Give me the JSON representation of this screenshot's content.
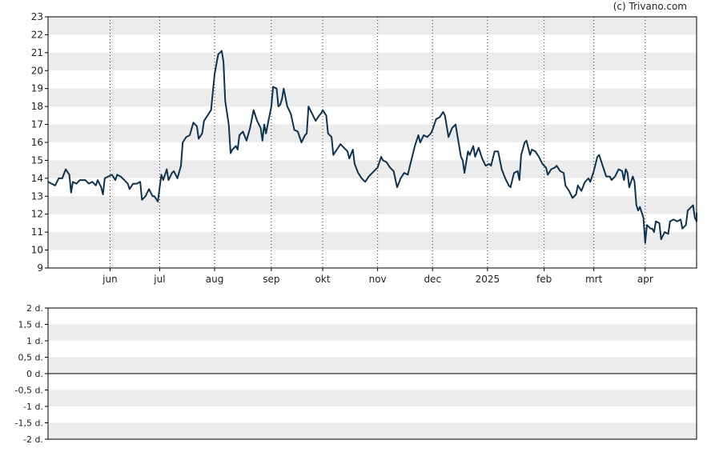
{
  "watermark": "(c) Trivano.com",
  "colors": {
    "line": "#0d3350",
    "band": "#ececec",
    "axis": "#000000",
    "text": "#222222"
  },
  "chart_data": [
    {
      "type": "line",
      "x_type": "date",
      "ylim": [
        9,
        23
      ],
      "yticks": [
        9,
        10,
        11,
        12,
        13,
        14,
        15,
        16,
        17,
        18,
        19,
        20,
        21,
        22,
        23
      ],
      "xlim": [
        "2024-04-29",
        "2025-04-30"
      ],
      "xticks": [
        {
          "date": "2024-06-03",
          "label": "jun"
        },
        {
          "date": "2024-07-01",
          "label": "jul"
        },
        {
          "date": "2024-08-01",
          "label": "aug"
        },
        {
          "date": "2024-09-02",
          "label": "sep"
        },
        {
          "date": "2024-10-01",
          "label": "okt"
        },
        {
          "date": "2024-11-01",
          "label": "nov"
        },
        {
          "date": "2024-12-02",
          "label": "dec"
        },
        {
          "date": "2025-01-02",
          "label": "2025"
        },
        {
          "date": "2025-02-03",
          "label": "feb"
        },
        {
          "date": "2025-03-03",
          "label": "mrt"
        },
        {
          "date": "2025-04-01",
          "label": "apr"
        }
      ],
      "grid": "vertical dotted at month ticks, alternating horizontal bands",
      "series": [
        {
          "points": [
            [
              "2024-04-29",
              13.8
            ],
            [
              "2024-05-01",
              13.7
            ],
            [
              "2024-05-03",
              13.6
            ],
            [
              "2024-05-05",
              14.0
            ],
            [
              "2024-05-07",
              14.0
            ],
            [
              "2024-05-09",
              14.5
            ],
            [
              "2024-05-11",
              14.2
            ],
            [
              "2024-05-12",
              13.2
            ],
            [
              "2024-05-13",
              13.8
            ],
            [
              "2024-05-15",
              13.7
            ],
            [
              "2024-05-17",
              13.9
            ],
            [
              "2024-05-20",
              13.9
            ],
            [
              "2024-05-22",
              13.7
            ],
            [
              "2024-05-24",
              13.8
            ],
            [
              "2024-05-26",
              13.6
            ],
            [
              "2024-05-27",
              13.9
            ],
            [
              "2024-05-29",
              13.5
            ],
            [
              "2024-05-30",
              13.1
            ],
            [
              "2024-05-31",
              14.0
            ],
            [
              "2024-06-02",
              14.1
            ],
            [
              "2024-06-04",
              14.2
            ],
            [
              "2024-06-06",
              13.9
            ],
            [
              "2024-06-07",
              14.2
            ],
            [
              "2024-06-09",
              14.1
            ],
            [
              "2024-06-11",
              13.9
            ],
            [
              "2024-06-13",
              13.7
            ],
            [
              "2024-06-14",
              13.4
            ],
            [
              "2024-06-16",
              13.7
            ],
            [
              "2024-06-18",
              13.7
            ],
            [
              "2024-06-20",
              13.8
            ],
            [
              "2024-06-21",
              12.8
            ],
            [
              "2024-06-23",
              13.0
            ],
            [
              "2024-06-25",
              13.4
            ],
            [
              "2024-06-27",
              13.0
            ],
            [
              "2024-06-28",
              13.0
            ],
            [
              "2024-06-30",
              12.7
            ],
            [
              "2024-07-01",
              13.5
            ],
            [
              "2024-07-02",
              14.2
            ],
            [
              "2024-07-03",
              13.9
            ],
            [
              "2024-07-05",
              14.5
            ],
            [
              "2024-07-06",
              13.9
            ],
            [
              "2024-07-08",
              14.3
            ],
            [
              "2024-07-09",
              14.4
            ],
            [
              "2024-07-11",
              14.0
            ],
            [
              "2024-07-13",
              14.7
            ],
            [
              "2024-07-14",
              16.0
            ],
            [
              "2024-07-16",
              16.3
            ],
            [
              "2024-07-18",
              16.4
            ],
            [
              "2024-07-20",
              17.1
            ],
            [
              "2024-07-22",
              16.9
            ],
            [
              "2024-07-23",
              16.2
            ],
            [
              "2024-07-25",
              16.5
            ],
            [
              "2024-07-26",
              17.2
            ],
            [
              "2024-07-28",
              17.5
            ],
            [
              "2024-07-30",
              17.8
            ],
            [
              "2024-07-31",
              18.8
            ],
            [
              "2024-08-01",
              19.8
            ],
            [
              "2024-08-03",
              20.9
            ],
            [
              "2024-08-05",
              21.1
            ],
            [
              "2024-08-06",
              20.5
            ],
            [
              "2024-08-07",
              18.3
            ],
            [
              "2024-08-09",
              17.0
            ],
            [
              "2024-08-10",
              15.4
            ],
            [
              "2024-08-11",
              15.6
            ],
            [
              "2024-08-13",
              15.8
            ],
            [
              "2024-08-14",
              15.6
            ],
            [
              "2024-08-15",
              16.4
            ],
            [
              "2024-08-17",
              16.6
            ],
            [
              "2024-08-19",
              16.1
            ],
            [
              "2024-08-21",
              16.8
            ],
            [
              "2024-08-23",
              17.8
            ],
            [
              "2024-08-25",
              17.2
            ],
            [
              "2024-08-27",
              16.8
            ],
            [
              "2024-08-28",
              16.1
            ],
            [
              "2024-08-29",
              17.0
            ],
            [
              "2024-08-30",
              16.5
            ],
            [
              "2024-08-31",
              17.0
            ],
            [
              "2024-09-02",
              18.0
            ],
            [
              "2024-09-03",
              19.1
            ],
            [
              "2024-09-05",
              19.0
            ],
            [
              "2024-09-06",
              18.0
            ],
            [
              "2024-09-07",
              18.1
            ],
            [
              "2024-09-08",
              18.4
            ],
            [
              "2024-09-09",
              19.0
            ],
            [
              "2024-09-11",
              18.0
            ],
            [
              "2024-09-13",
              17.6
            ],
            [
              "2024-09-15",
              16.7
            ],
            [
              "2024-09-17",
              16.6
            ],
            [
              "2024-09-19",
              16.0
            ],
            [
              "2024-09-21",
              16.4
            ],
            [
              "2024-09-22",
              16.5
            ],
            [
              "2024-09-23",
              18.0
            ],
            [
              "2024-09-25",
              17.6
            ],
            [
              "2024-09-27",
              17.2
            ],
            [
              "2024-09-29",
              17.5
            ],
            [
              "2024-09-30",
              17.6
            ],
            [
              "2024-10-01",
              17.8
            ],
            [
              "2024-10-03",
              17.5
            ],
            [
              "2024-10-04",
              16.5
            ],
            [
              "2024-10-06",
              16.3
            ],
            [
              "2024-10-07",
              15.3
            ],
            [
              "2024-10-09",
              15.6
            ],
            [
              "2024-10-11",
              15.9
            ],
            [
              "2024-10-13",
              15.7
            ],
            [
              "2024-10-15",
              15.5
            ],
            [
              "2024-10-16",
              15.1
            ],
            [
              "2024-10-18",
              15.6
            ],
            [
              "2024-10-19",
              14.8
            ],
            [
              "2024-10-21",
              14.3
            ],
            [
              "2024-10-23",
              14.0
            ],
            [
              "2024-10-25",
              13.8
            ],
            [
              "2024-10-27",
              14.1
            ],
            [
              "2024-10-29",
              14.3
            ],
            [
              "2024-11-01",
              14.6
            ],
            [
              "2024-11-03",
              15.2
            ],
            [
              "2024-11-04",
              15.0
            ],
            [
              "2024-11-06",
              14.9
            ],
            [
              "2024-11-08",
              14.6
            ],
            [
              "2024-11-10",
              14.4
            ],
            [
              "2024-11-12",
              13.5
            ],
            [
              "2024-11-14",
              14.0
            ],
            [
              "2024-11-16",
              14.3
            ],
            [
              "2024-11-18",
              14.2
            ],
            [
              "2024-11-20",
              15.0
            ],
            [
              "2024-11-22",
              15.8
            ],
            [
              "2024-11-24",
              16.4
            ],
            [
              "2024-11-25",
              16.0
            ],
            [
              "2024-11-27",
              16.4
            ],
            [
              "2024-11-29",
              16.3
            ],
            [
              "2024-12-01",
              16.5
            ],
            [
              "2024-12-02",
              16.7
            ],
            [
              "2024-12-04",
              17.3
            ],
            [
              "2024-12-06",
              17.4
            ],
            [
              "2024-12-08",
              17.7
            ],
            [
              "2024-12-09",
              17.5
            ],
            [
              "2024-12-11",
              16.3
            ],
            [
              "2024-12-13",
              16.8
            ],
            [
              "2024-12-15",
              17.0
            ],
            [
              "2024-12-16",
              16.4
            ],
            [
              "2024-12-18",
              15.2
            ],
            [
              "2024-12-19",
              15.0
            ],
            [
              "2024-12-20",
              14.3
            ],
            [
              "2024-12-22",
              15.5
            ],
            [
              "2024-12-23",
              15.3
            ],
            [
              "2024-12-25",
              15.8
            ],
            [
              "2024-12-26",
              15.2
            ],
            [
              "2024-12-28",
              15.7
            ],
            [
              "2024-12-30",
              15.1
            ],
            [
              "2025-01-01",
              14.7
            ],
            [
              "2025-01-03",
              14.8
            ],
            [
              "2025-01-04",
              14.7
            ],
            [
              "2025-01-06",
              15.5
            ],
            [
              "2025-01-08",
              15.5
            ],
            [
              "2025-01-10",
              14.5
            ],
            [
              "2025-01-12",
              14.0
            ],
            [
              "2025-01-14",
              13.6
            ],
            [
              "2025-01-15",
              13.5
            ],
            [
              "2025-01-17",
              14.3
            ],
            [
              "2025-01-19",
              14.4
            ],
            [
              "2025-01-20",
              13.9
            ],
            [
              "2025-01-21",
              15.3
            ],
            [
              "2025-01-23",
              16.0
            ],
            [
              "2025-01-24",
              16.1
            ],
            [
              "2025-01-26",
              15.3
            ],
            [
              "2025-01-27",
              15.6
            ],
            [
              "2025-01-29",
              15.5
            ],
            [
              "2025-01-31",
              15.2
            ],
            [
              "2025-02-02",
              14.8
            ],
            [
              "2025-02-04",
              14.6
            ],
            [
              "2025-02-05",
              14.2
            ],
            [
              "2025-02-07",
              14.5
            ],
            [
              "2025-02-09",
              14.6
            ],
            [
              "2025-02-10",
              14.7
            ],
            [
              "2025-02-12",
              14.4
            ],
            [
              "2025-02-14",
              14.3
            ],
            [
              "2025-02-15",
              13.6
            ],
            [
              "2025-02-17",
              13.3
            ],
            [
              "2025-02-19",
              12.9
            ],
            [
              "2025-02-21",
              13.1
            ],
            [
              "2025-02-22",
              13.6
            ],
            [
              "2025-02-24",
              13.3
            ],
            [
              "2025-02-26",
              13.8
            ],
            [
              "2025-02-28",
              14.0
            ],
            [
              "2025-03-01",
              13.8
            ],
            [
              "2025-03-03",
              14.4
            ],
            [
              "2025-03-05",
              15.2
            ],
            [
              "2025-03-06",
              15.3
            ],
            [
              "2025-03-08",
              14.7
            ],
            [
              "2025-03-10",
              14.1
            ],
            [
              "2025-03-12",
              14.1
            ],
            [
              "2025-03-13",
              13.9
            ],
            [
              "2025-03-15",
              14.1
            ],
            [
              "2025-03-17",
              14.5
            ],
            [
              "2025-03-19",
              14.4
            ],
            [
              "2025-03-20",
              13.9
            ],
            [
              "2025-03-21",
              14.5
            ],
            [
              "2025-03-22",
              14.3
            ],
            [
              "2025-03-23",
              13.5
            ],
            [
              "2025-03-25",
              14.1
            ],
            [
              "2025-03-26",
              13.8
            ],
            [
              "2025-03-27",
              12.5
            ],
            [
              "2025-03-28",
              12.2
            ],
            [
              "2025-03-29",
              12.4
            ],
            [
              "2025-03-31",
              11.8
            ],
            [
              "2025-04-01",
              10.4
            ],
            [
              "2025-04-02",
              11.4
            ],
            [
              "2025-04-04",
              11.2
            ],
            [
              "2025-04-05",
              11.2
            ],
            [
              "2025-04-06",
              11.0
            ],
            [
              "2025-04-07",
              11.6
            ],
            [
              "2025-04-09",
              11.5
            ],
            [
              "2025-04-10",
              10.6
            ],
            [
              "2025-04-12",
              11.0
            ],
            [
              "2025-04-14",
              10.9
            ],
            [
              "2025-04-15",
              11.6
            ],
            [
              "2025-04-17",
              11.7
            ],
            [
              "2025-04-19",
              11.6
            ],
            [
              "2025-04-21",
              11.7
            ],
            [
              "2025-04-22",
              11.2
            ],
            [
              "2025-04-24",
              11.4
            ],
            [
              "2025-04-25",
              12.2
            ],
            [
              "2025-04-27",
              12.4
            ],
            [
              "2025-04-28",
              12.5
            ],
            [
              "2025-04-29",
              11.8
            ],
            [
              "2025-04-30",
              11.6
            ],
            [
              "2025-05-01",
              11.9
            ],
            [
              "2025-05-02",
              12.1
            ]
          ]
        }
      ]
    },
    {
      "type": "line",
      "ylim": [
        -2,
        2
      ],
      "yticks": [
        {
          "value": 2,
          "label": "2 d."
        },
        {
          "value": 1.5,
          "label": "1,5 d."
        },
        {
          "value": 1,
          "label": "1 d."
        },
        {
          "value": 0.5,
          "label": "0,5 d."
        },
        {
          "value": 0,
          "label": "0 d."
        },
        {
          "value": -0.5,
          "label": "-0,5 d."
        },
        {
          "value": -1,
          "label": "-1 d."
        },
        {
          "value": -1.5,
          "label": "-1,5 d."
        },
        {
          "value": -2,
          "label": "-2 d."
        }
      ],
      "zero_line": true,
      "series": []
    }
  ]
}
